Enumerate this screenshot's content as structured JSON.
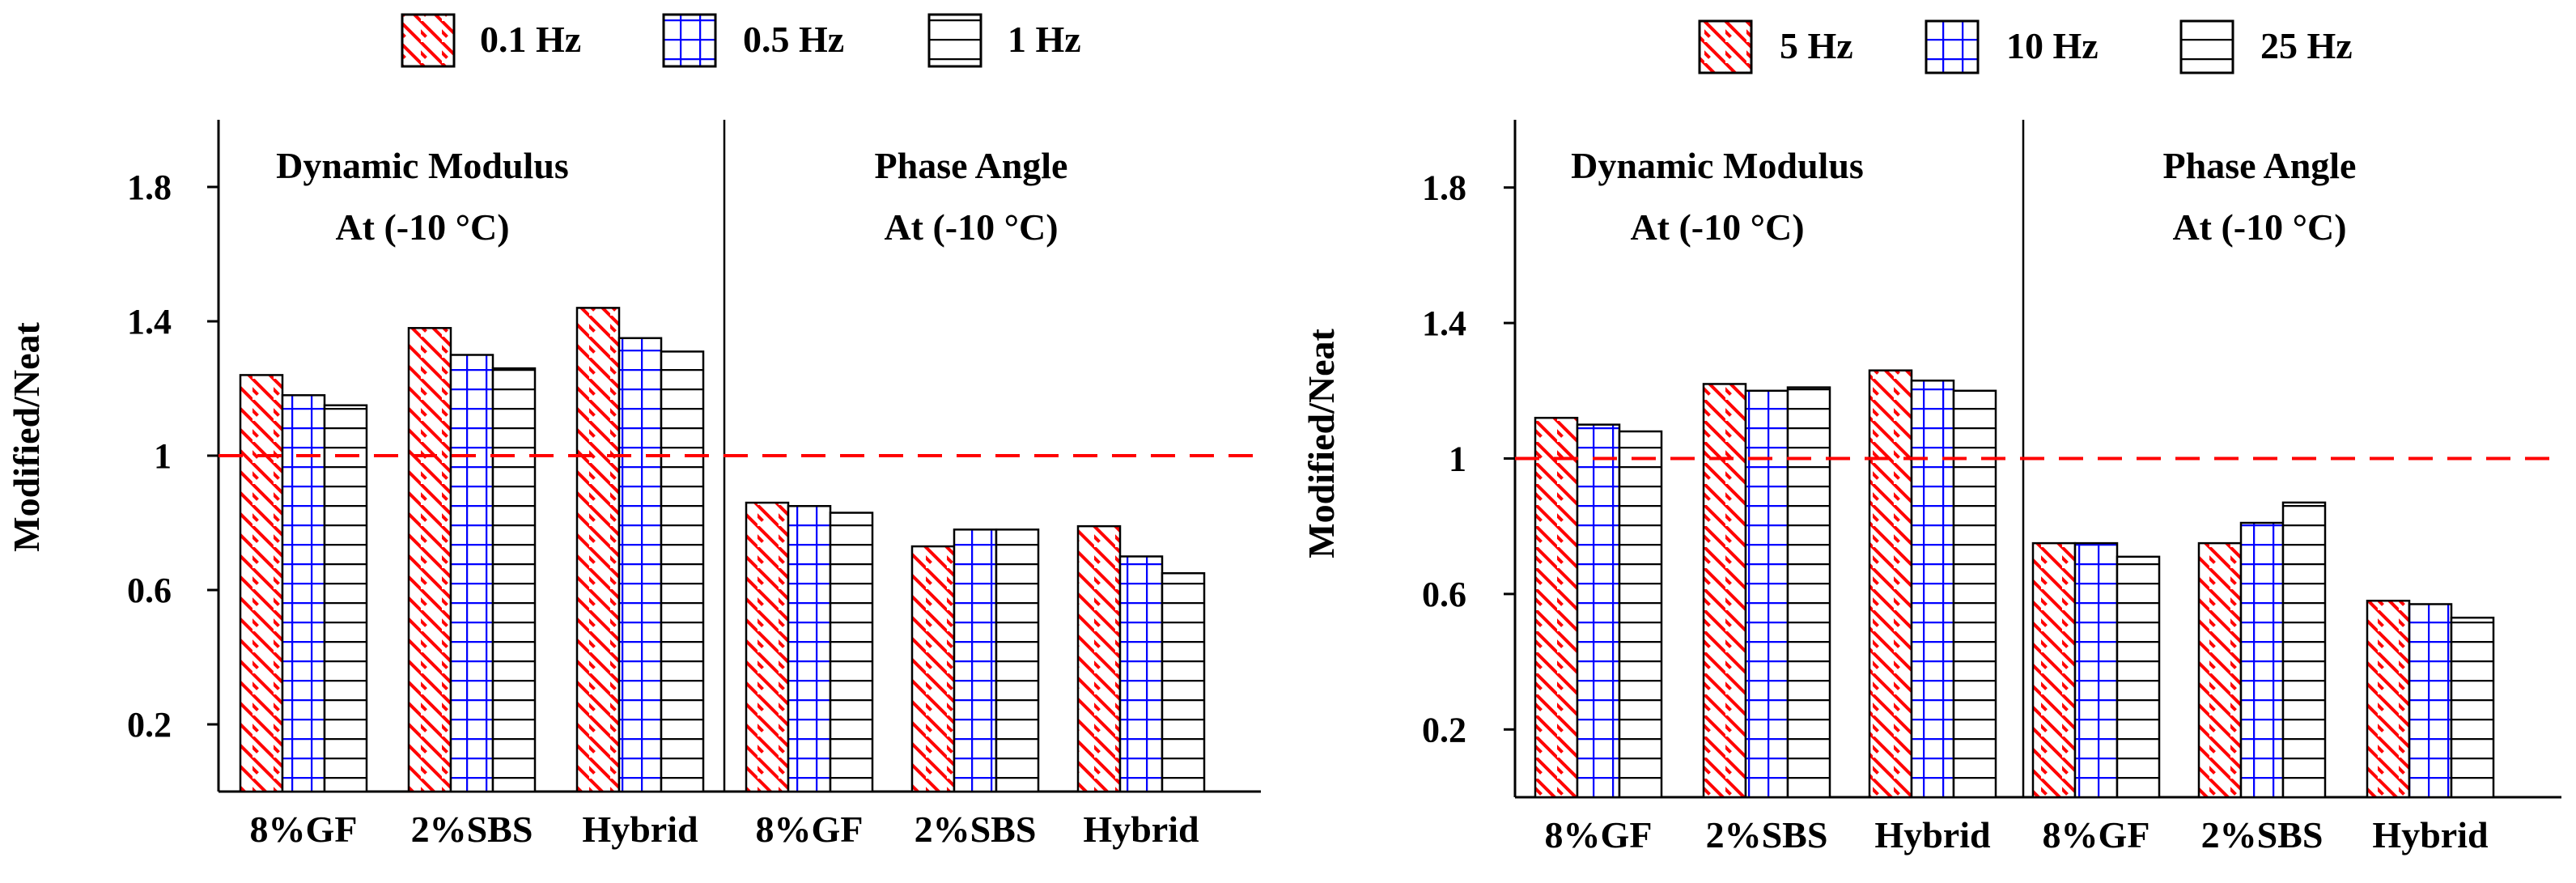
{
  "colors": {
    "series_red": "#ff0000",
    "series_blue": "#0000ff",
    "series_black": "#000000",
    "reference_line": "#ff0000",
    "axis": "#000000",
    "background": "#ffffff"
  },
  "chart_data": [
    {
      "type": "bar",
      "title": "",
      "xlabel": "",
      "ylabel": "Modified/Neat",
      "ylim": [
        0,
        2
      ],
      "yticks": [
        "0.2",
        "0.6",
        "1",
        "1.4",
        "1.8"
      ],
      "reference_line": 1,
      "categories": [
        "8%GF",
        "2%SBS",
        "Hybrid",
        "8%GF",
        "2%SBS",
        "Hybrid"
      ],
      "legend": [
        "0.1 Hz",
        "0.5 Hz",
        "1 Hz"
      ],
      "panels": [
        {
          "title_line1": "Dynamic Modulus",
          "title_line2": "At (-10 °C)"
        },
        {
          "title_line1": "Phase Angle",
          "title_line2": "At (-10 °C)"
        }
      ],
      "series": [
        {
          "name": "0.1 Hz",
          "pattern": "hatch-red",
          "values": [
            1.24,
            1.38,
            1.44,
            0.86,
            0.73,
            0.79
          ]
        },
        {
          "name": "0.5 Hz",
          "pattern": "grid-blue",
          "values": [
            1.18,
            1.3,
            1.35,
            0.85,
            0.78,
            0.7
          ]
        },
        {
          "name": "1 Hz",
          "pattern": "lines-black",
          "values": [
            1.15,
            1.26,
            1.31,
            0.83,
            0.78,
            0.65
          ]
        }
      ]
    },
    {
      "type": "bar",
      "title": "",
      "xlabel": "",
      "ylabel": "Modified/Neat",
      "ylim": [
        0,
        2
      ],
      "yticks": [
        "0.2",
        "0.6",
        "1",
        "1.4",
        "1.8"
      ],
      "reference_line": 1,
      "categories": [
        "8%GF",
        "2%SBS",
        "Hybrid",
        "8%GF",
        "2%SBS",
        "Hybrid"
      ],
      "legend": [
        "5 Hz",
        "10 Hz",
        "25 Hz"
      ],
      "panels": [
        {
          "title_line1": "Dynamic Modulus",
          "title_line2": "At (-10 °C)"
        },
        {
          "title_line1": "Phase Angle",
          "title_line2": "At (-10 °C)"
        }
      ],
      "series": [
        {
          "name": "5 Hz",
          "pattern": "hatch-red",
          "values": [
            1.12,
            1.22,
            1.26,
            0.75,
            0.75,
            0.58
          ]
        },
        {
          "name": "10 Hz",
          "pattern": "grid-blue",
          "values": [
            1.1,
            1.2,
            1.23,
            0.75,
            0.81,
            0.57
          ]
        },
        {
          "name": "25 Hz",
          "pattern": "lines-black",
          "values": [
            1.08,
            1.21,
            1.2,
            0.71,
            0.87,
            0.53
          ]
        }
      ]
    }
  ]
}
